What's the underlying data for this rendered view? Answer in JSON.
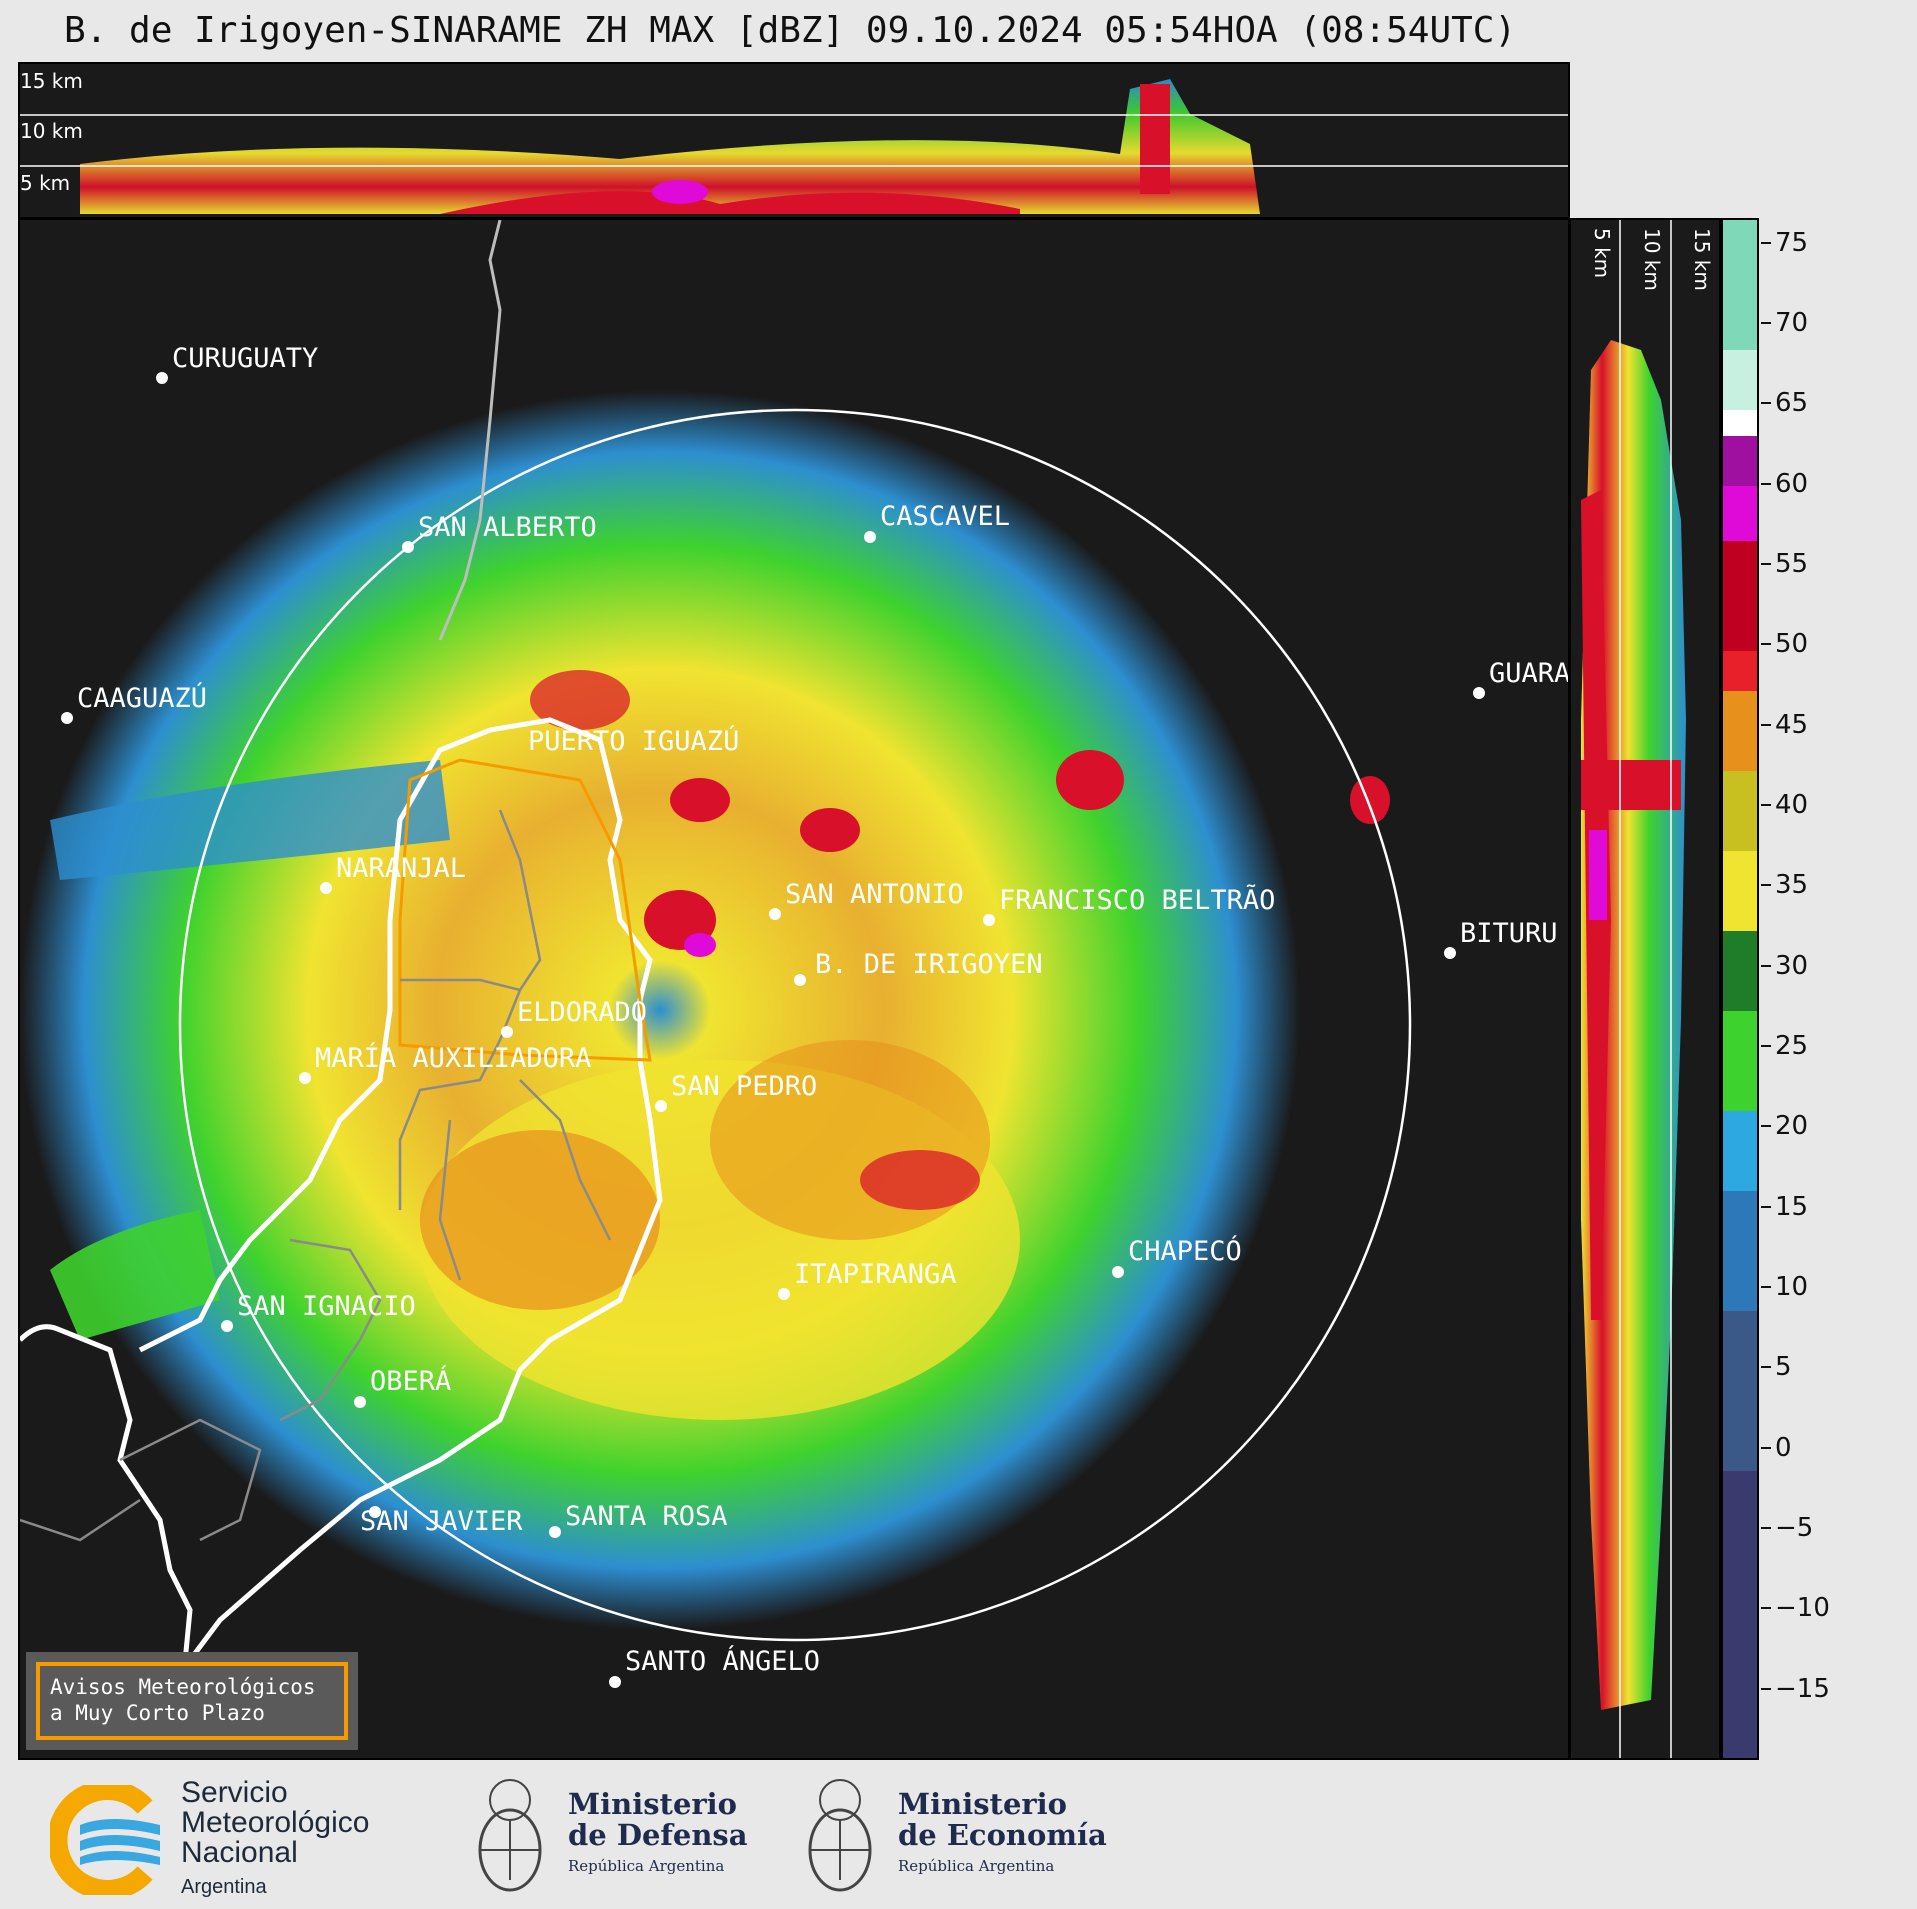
{
  "title": "B. de Irigoyen-SINARAME ZH MAX [dBZ] 09.10.2024 05:54HOA (08:54UTC)",
  "top_profile": {
    "height_labels": [
      "15 km",
      "10 km",
      "5 km"
    ]
  },
  "right_profile": {
    "height_labels": [
      "5 km",
      "10 km",
      "15 km"
    ]
  },
  "cities": [
    {
      "name": "CURUGUATY"
    },
    {
      "name": "SAN ALBERTO"
    },
    {
      "name": "CASCAVEL"
    },
    {
      "name": "CAAGUAZÚ"
    },
    {
      "name": "GUARA"
    },
    {
      "name": "PUERTO IGUAZÚ"
    },
    {
      "name": "NARANJAL"
    },
    {
      "name": "SAN ANTONIO"
    },
    {
      "name": "FRANCISCO BELTRÃO"
    },
    {
      "name": "B. DE IRIGOYEN"
    },
    {
      "name": "BITURU"
    },
    {
      "name": "ELDORADO"
    },
    {
      "name": "MARÍA AUXILIADORA"
    },
    {
      "name": "SAN PEDRO"
    },
    {
      "name": "ITAPIRANGA"
    },
    {
      "name": "CHAPECÓ"
    },
    {
      "name": "SAN IGNACIO"
    },
    {
      "name": "OBERÁ"
    },
    {
      "name": "SAN JAVIER"
    },
    {
      "name": "SANTA ROSA"
    },
    {
      "name": "SANTO ÁNGELO"
    }
  ],
  "colorbar": {
    "unit": "dBZ",
    "ticks": [
      "75",
      "70",
      "65",
      "60",
      "55",
      "50",
      "45",
      "40",
      "35",
      "30",
      "25",
      "20",
      "15",
      "10",
      "5",
      "0",
      "−5",
      "−10",
      "−15"
    ],
    "colors": {
      "violet": "#3a3a6e",
      "blue": "#2d8fd0",
      "green": "#3ed22e",
      "dark_green": "#1f7d2a",
      "yellow": "#f0e430",
      "orange": "#e8901c",
      "red": "#d8102a",
      "magenta": "#e00ad8",
      "white": "#ffffff",
      "teal": "#7fd8b8"
    }
  },
  "warning": {
    "line1": "Avisos Meteorológicos",
    "line2": "a Muy Corto Plazo"
  },
  "logos": {
    "smn": {
      "line1": "Servicio",
      "line2": "Meteorológico",
      "line3": "Nacional",
      "line4": "Argentina"
    },
    "defensa": {
      "line1": "Ministerio",
      "line2": "de Defensa",
      "line3": "República Argentina"
    },
    "economia": {
      "line1": "Ministerio",
      "line2": "de Economía",
      "line3": "República Argentina"
    }
  }
}
